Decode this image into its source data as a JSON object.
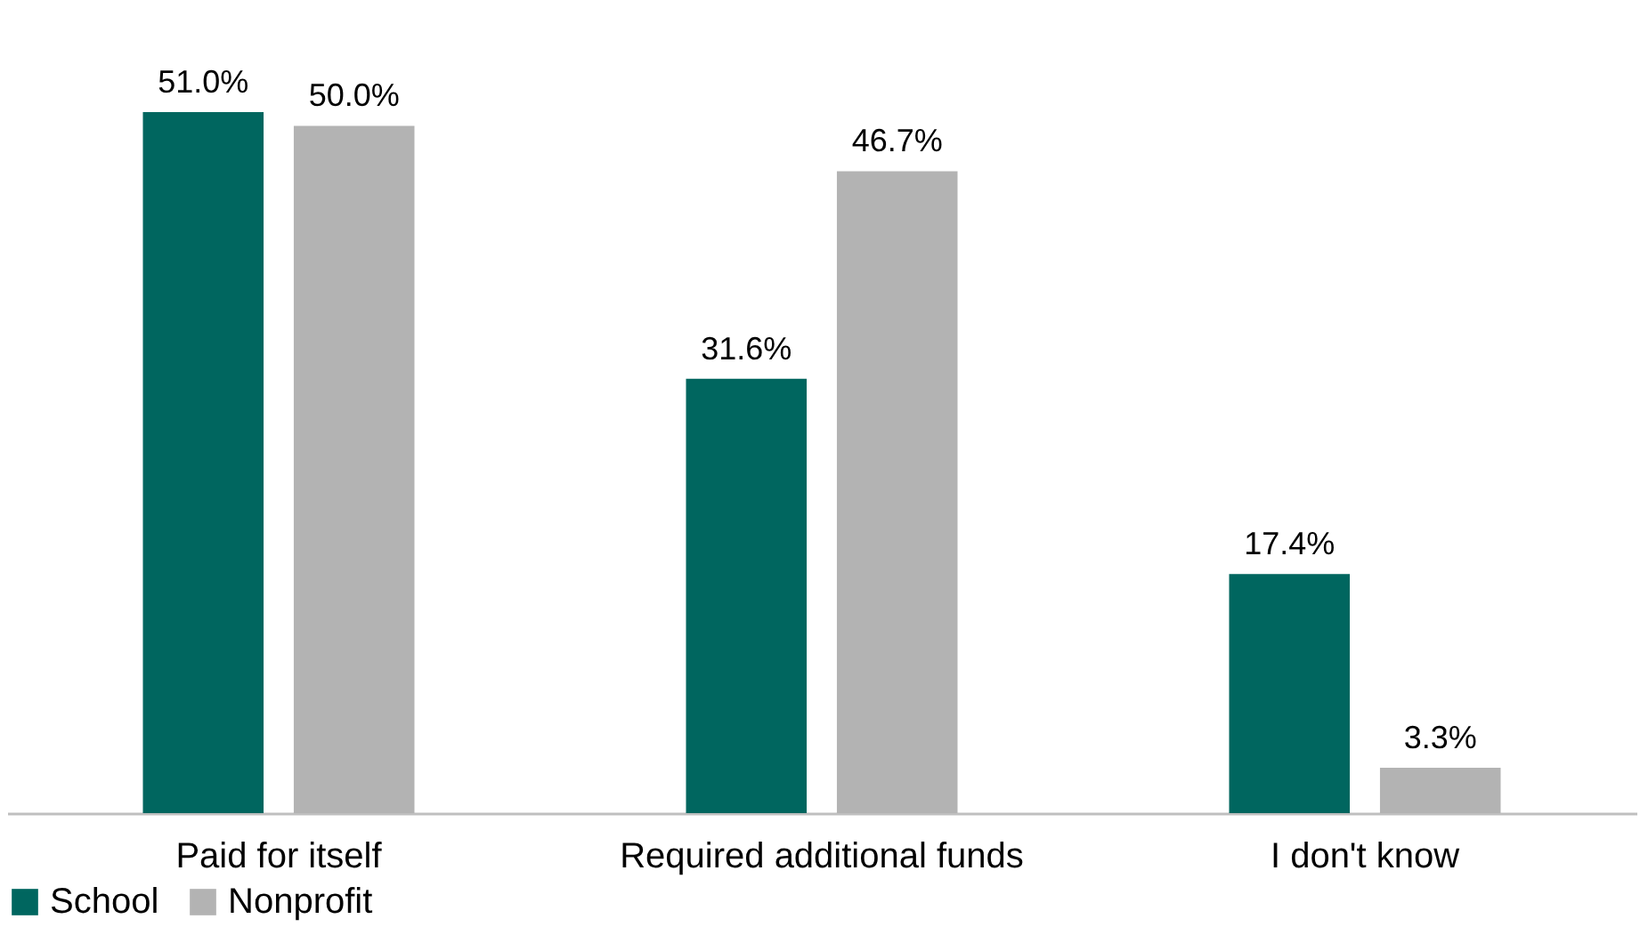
{
  "chart_data": {
    "type": "bar",
    "categories": [
      "Paid for itself",
      "Required additional funds",
      "I don't know"
    ],
    "series": [
      {
        "name": "School",
        "color": "#00665f",
        "values": [
          51.0,
          31.6,
          17.4
        ],
        "value_labels": [
          "51.0%",
          "31.6%",
          "17.4%"
        ]
      },
      {
        "name": "Nonprofit",
        "color": "#b3b3b3",
        "values": [
          50.0,
          46.7,
          3.3
        ],
        "value_labels": [
          "50.0%",
          "46.7%",
          "3.3%"
        ]
      }
    ],
    "legend": "bottom",
    "tick_labels": "x"
  }
}
